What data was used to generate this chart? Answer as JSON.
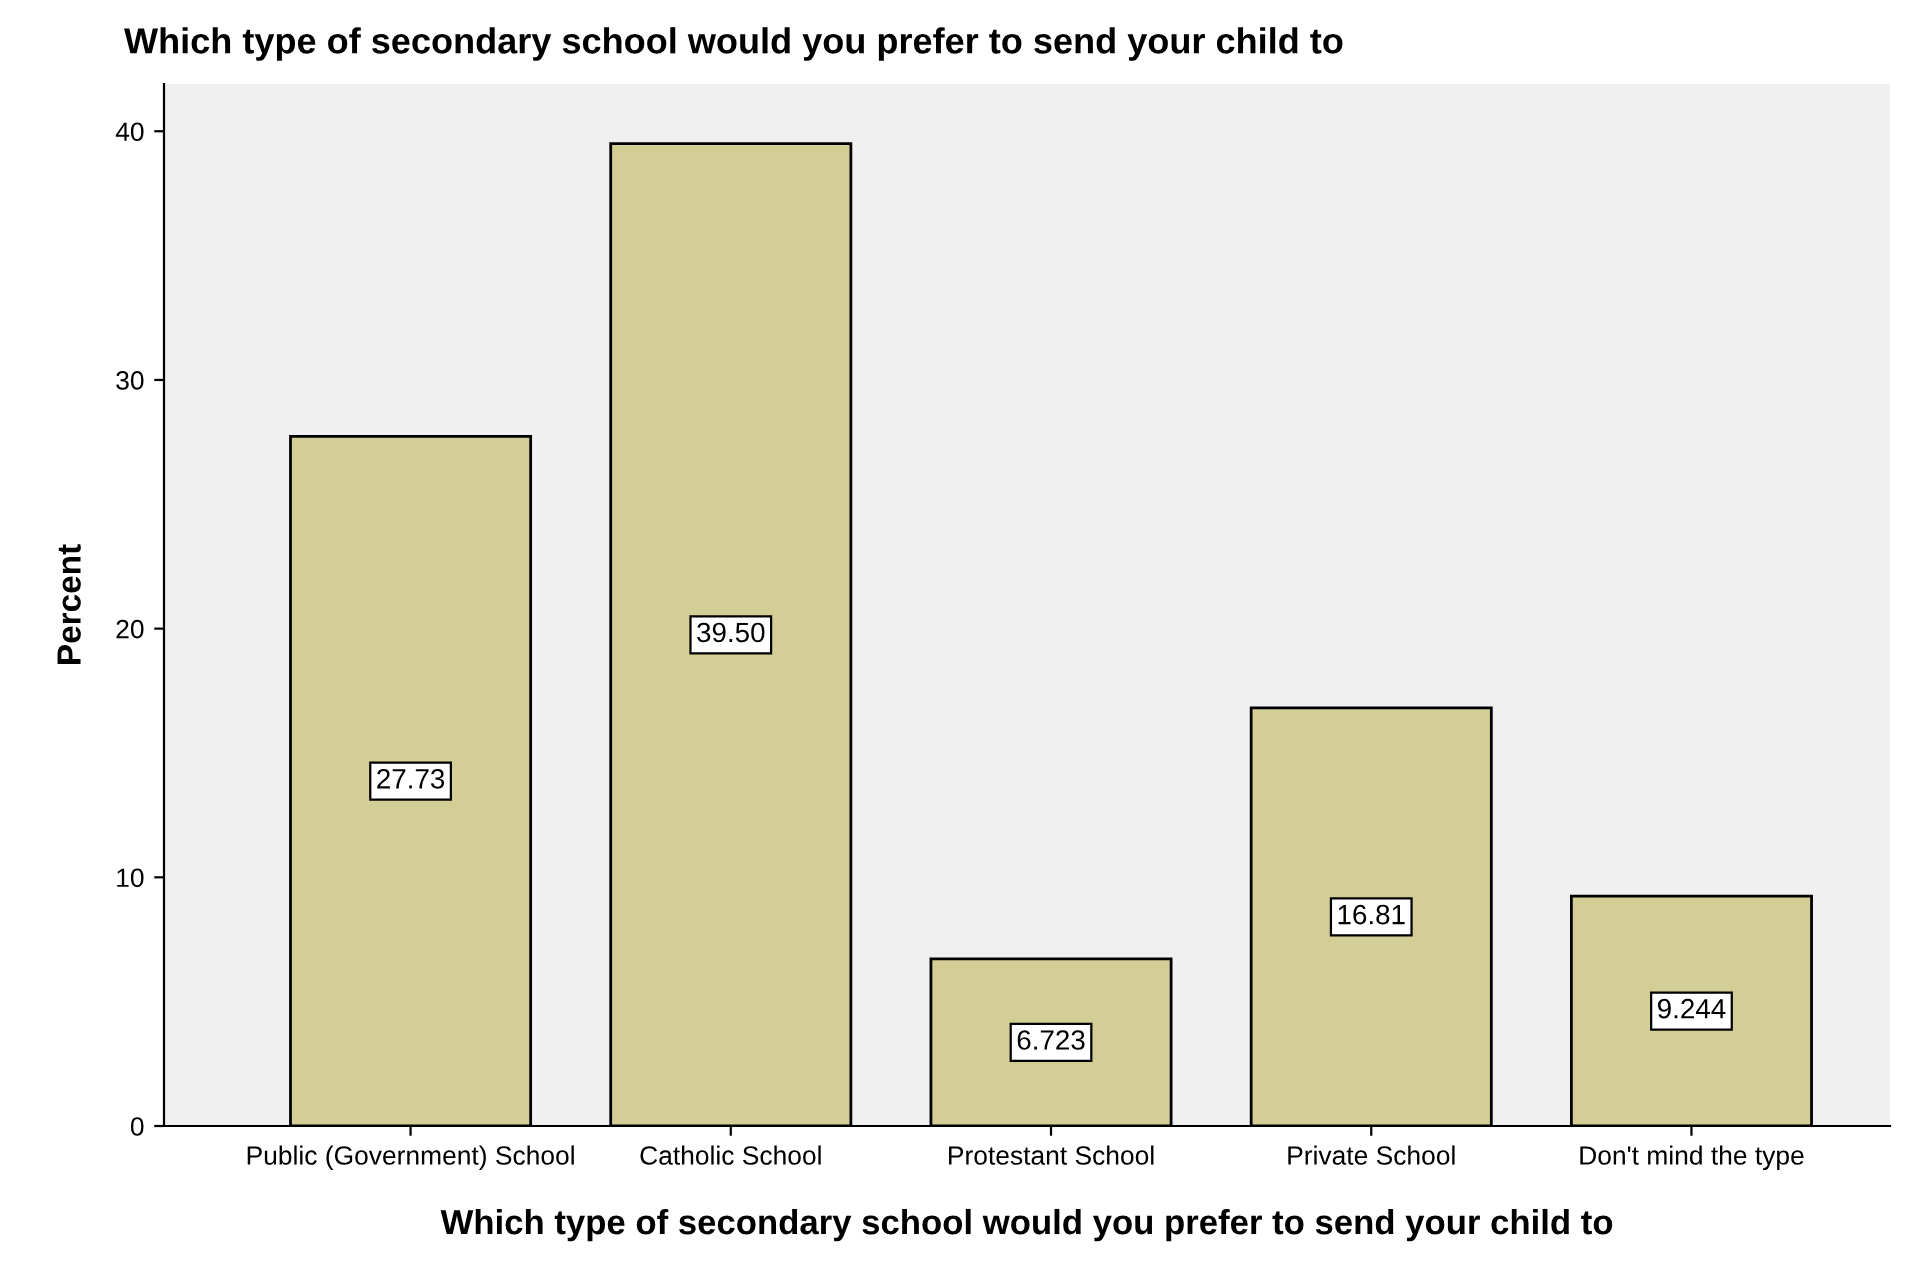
{
  "chart_data": {
    "type": "bar",
    "title": "Which type of secondary school would you prefer to send your child to",
    "xlabel": "Which type of secondary school would you prefer to send your child to",
    "ylabel": "Percent",
    "categories": [
      "Public (Government) School",
      "Catholic School",
      "Protestant School",
      "Private School",
      "Don't mind the type"
    ],
    "values": [
      27.73,
      39.5,
      6.723,
      16.81,
      9.244
    ],
    "value_labels": [
      "27.73",
      "39.50",
      "6.723",
      "16.81",
      "9.244"
    ],
    "color": "#d3ce96",
    "ylim": [
      0,
      41.9
    ],
    "yticks": [
      0,
      10,
      20,
      30,
      40
    ],
    "grid": false,
    "legend": false
  }
}
